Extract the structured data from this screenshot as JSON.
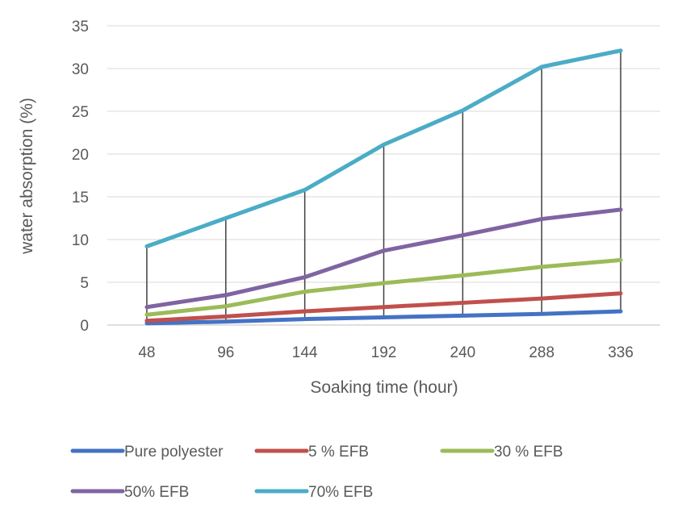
{
  "chart_data": {
    "type": "line",
    "title": "",
    "xlabel": "Soaking time (hour)",
    "ylabel": "water absorption (%)",
    "categories": [
      "48",
      "96",
      "144",
      "192",
      "240",
      "288",
      "336"
    ],
    "ylim": [
      0,
      35
    ],
    "yticks": [
      0,
      5,
      10,
      15,
      20,
      25,
      30,
      35
    ],
    "grid": true,
    "drop_lines": true,
    "legend_position": "bottom",
    "series": [
      {
        "name": "Pure polyester",
        "color": "#4472C4",
        "values": [
          0.2,
          0.4,
          0.7,
          0.9,
          1.1,
          1.3,
          1.6
        ]
      },
      {
        "name": "5 % EFB",
        "color": "#C0504D",
        "values": [
          0.5,
          1.0,
          1.6,
          2.1,
          2.6,
          3.1,
          3.7
        ]
      },
      {
        "name": "30 % EFB",
        "color": "#9BBB59",
        "values": [
          1.2,
          2.2,
          3.9,
          4.9,
          5.8,
          6.8,
          7.6
        ]
      },
      {
        "name": "50% EFB",
        "color": "#8064A2",
        "values": [
          2.1,
          3.5,
          5.6,
          8.7,
          10.5,
          12.4,
          13.5
        ]
      },
      {
        "name": "70% EFB",
        "color": "#4BACC6",
        "values": [
          9.2,
          12.5,
          15.8,
          21.1,
          25.1,
          30.2,
          32.1
        ]
      }
    ]
  }
}
